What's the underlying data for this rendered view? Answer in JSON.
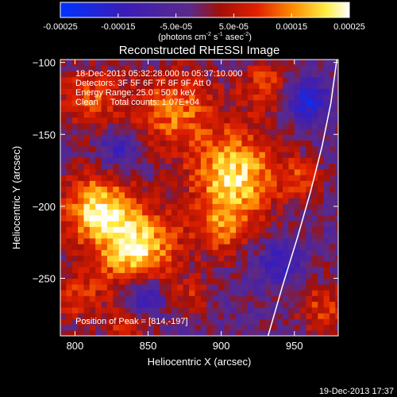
{
  "colorbar": {
    "ticks": [
      {
        "value": -0.00025,
        "label": "-0.00025"
      },
      {
        "value": -0.00015,
        "label": "-0.00015"
      },
      {
        "value": -5e-05,
        "label": "-5.0e-05"
      },
      {
        "value": 5e-05,
        "label": "5.0e-05"
      },
      {
        "value": 0.00015,
        "label": "0.00015"
      },
      {
        "value": 0.00025,
        "label": "0.00025"
      }
    ],
    "range": [
      -0.00025,
      0.00025
    ],
    "units_main": "(photons cm",
    "units_exp1": "-2",
    "units_mid": " s",
    "units_exp2": "-1",
    "units_tail": " asec",
    "units_exp3": "-2",
    "units_close": ")"
  },
  "annotations": {
    "time": "18-Dec-2013 05:32:28.000 to 05:37:10.000",
    "detectors": "Detectors: 3F 5F 6F 7F 8F 9F Att 0",
    "energy": "Energy Range: 25.0 - 50.0 keV",
    "clean": "Clean     Total counts: 1.07E+04",
    "peak": "Position of Peak = [814,-197]"
  },
  "footer_timestamp": "19-Dec-2013 17:37",
  "chart_data": {
    "type": "heatmap",
    "title": "Reconstructed RHESSI Image",
    "xlabel": "Heliocentric X (arcsec)",
    "ylabel": "Heliocentric Y (arcsec)",
    "xlim": [
      790,
      980
    ],
    "ylim": [
      -290,
      -98
    ],
    "x_ticks": [
      {
        "value": 800,
        "label": "800"
      },
      {
        "value": 850,
        "label": "850"
      },
      {
        "value": 900,
        "label": "900"
      },
      {
        "value": 950,
        "label": "950"
      }
    ],
    "y_ticks": [
      {
        "value": -100,
        "label": "−100"
      },
      {
        "value": -150,
        "label": "−150"
      },
      {
        "value": -200,
        "label": "−200"
      },
      {
        "value": -250,
        "label": "−250"
      }
    ],
    "colormap": "blue-purple-red-yellow-white (RHESSI)",
    "sources": [
      {
        "x": 842,
        "y": -228,
        "amplitude": 0.00025,
        "radius": 20
      },
      {
        "x": 814,
        "y": -200,
        "amplitude": 0.00022,
        "radius": 17
      },
      {
        "x": 910,
        "y": -178,
        "amplitude": 0.00024,
        "radius": 22
      },
      {
        "x": 868,
        "y": -132,
        "amplitude": 0.00017,
        "radius": 20
      },
      {
        "x": 810,
        "y": -125,
        "amplitude": 0.00014,
        "radius": 16
      },
      {
        "x": 930,
        "y": -115,
        "amplitude": 0.00012,
        "radius": 14
      },
      {
        "x": 900,
        "y": -215,
        "amplitude": 0.00013,
        "radius": 14
      },
      {
        "x": 970,
        "y": -270,
        "amplitude": 0.00012,
        "radius": 14
      },
      {
        "x": 800,
        "y": -262,
        "amplitude": 0.00011,
        "radius": 14
      },
      {
        "x": 955,
        "y": -180,
        "amplitude": 0.0001,
        "radius": 10
      },
      {
        "x": 835,
        "y": -285,
        "amplitude": 0.0001,
        "radius": 12
      },
      {
        "x": 880,
        "y": -262,
        "amplitude": 9e-05,
        "radius": 10
      }
    ],
    "negative_sources": [
      {
        "x": 958,
        "y": -125,
        "amplitude": -0.00018,
        "radius": 10
      },
      {
        "x": 848,
        "y": -262,
        "amplitude": -0.00016,
        "radius": 9
      },
      {
        "x": 830,
        "y": -160,
        "amplitude": -0.00012,
        "radius": 9
      },
      {
        "x": 940,
        "y": -240,
        "amplitude": -0.00012,
        "radius": 10
      }
    ],
    "limb_curve": [
      {
        "x": 932,
        "y": -290
      },
      {
        "x": 942,
        "y": -255
      },
      {
        "x": 952,
        "y": -222
      },
      {
        "x": 961,
        "y": -190
      },
      {
        "x": 969,
        "y": -158
      },
      {
        "x": 975,
        "y": -128
      },
      {
        "x": 979,
        "y": -98
      }
    ]
  }
}
